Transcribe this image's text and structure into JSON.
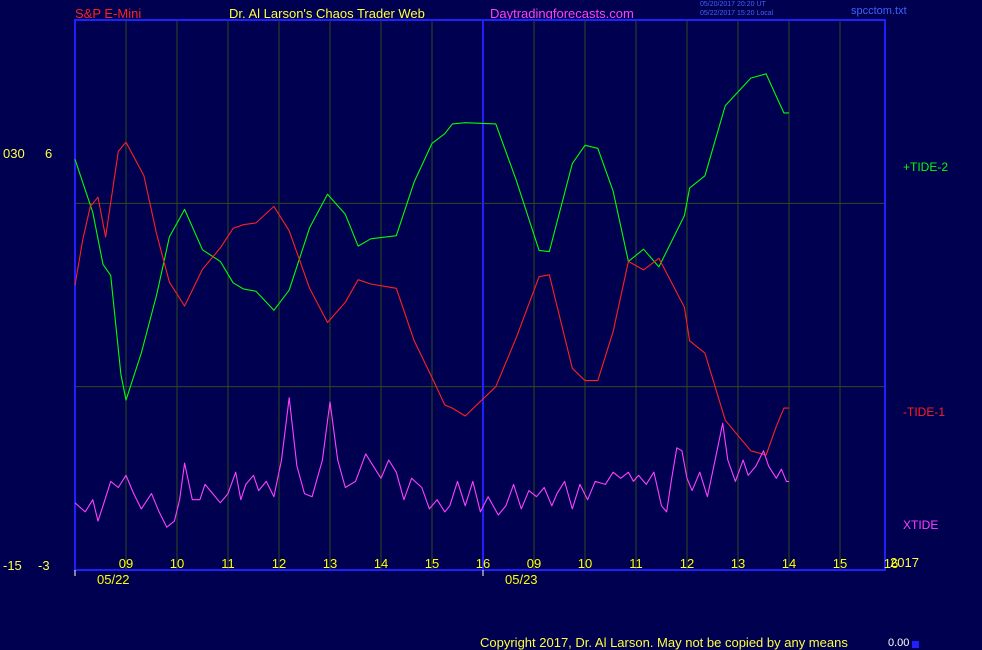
{
  "header": {
    "symbol": "S&P E-Mini",
    "title": "Dr. Al Larson's Chaos Trader Web",
    "site": "Daytradingforecasts.com",
    "ut_line": "05/20/2017 20:20 UT",
    "local_line": "05/22/2017 15:20 Local",
    "file": "spcctom.txt"
  },
  "footer": {
    "copyright": "Copyright 2017, Dr. Al Larson. May not be copied by any means",
    "value": "0.00"
  },
  "left_axis": {
    "top_a": "030",
    "top_b": "6",
    "bottom_a": "-15",
    "bottom_b": "-3"
  },
  "colors": {
    "background": "#000050",
    "frame": "#2020ff",
    "grid": "#2e4a1e",
    "tide2": "#00ff00",
    "tide1": "#ff2020",
    "xtide": "#ff40ff",
    "label": "#ffff00"
  },
  "chart_data": {
    "type": "line",
    "title": "",
    "x_tick_labels": [
      "09",
      "10",
      "11",
      "12",
      "13",
      "14",
      "15",
      "16",
      "09",
      "10",
      "11",
      "12",
      "13",
      "14",
      "15",
      "16"
    ],
    "date_labels": [
      "05/22",
      "05/23"
    ],
    "year_label": "2017",
    "y_range": [
      -3,
      6
    ],
    "series": [
      {
        "name": "+TIDE-2",
        "color": "#00ff00",
        "points": [
          [
            0,
            3.72
          ],
          [
            0.35,
            2.85
          ],
          [
            0.55,
            2.0
          ],
          [
            0.7,
            1.82
          ],
          [
            0.9,
            0.2
          ],
          [
            1.0,
            -0.22
          ],
          [
            1.3,
            0.55
          ],
          [
            1.6,
            1.5
          ],
          [
            1.85,
            2.45
          ],
          [
            2.15,
            2.9
          ],
          [
            2.5,
            2.24
          ],
          [
            2.85,
            2.05
          ],
          [
            3.1,
            1.7
          ],
          [
            3.3,
            1.6
          ],
          [
            3.55,
            1.56
          ],
          [
            3.9,
            1.25
          ],
          [
            4.2,
            1.58
          ],
          [
            4.6,
            2.6
          ],
          [
            4.95,
            3.15
          ],
          [
            5.3,
            2.82
          ],
          [
            5.55,
            2.3
          ],
          [
            5.8,
            2.42
          ],
          [
            6.3,
            2.47
          ],
          [
            6.65,
            3.35
          ],
          [
            7.0,
            3.98
          ],
          [
            7.25,
            4.14
          ],
          [
            7.4,
            4.3
          ],
          [
            7.65,
            4.32
          ],
          [
            8.25,
            4.3
          ],
          [
            8.65,
            3.38
          ],
          [
            9.1,
            2.23
          ],
          [
            9.3,
            2.21
          ],
          [
            9.75,
            3.65
          ],
          [
            10.0,
            3.95
          ],
          [
            10.25,
            3.9
          ],
          [
            10.55,
            3.2
          ],
          [
            10.85,
            2.05
          ],
          [
            11.15,
            2.25
          ],
          [
            11.45,
            1.96
          ],
          [
            11.95,
            2.8
          ],
          [
            12.05,
            3.25
          ],
          [
            12.35,
            3.45
          ],
          [
            12.75,
            4.6
          ],
          [
            13.25,
            5.05
          ],
          [
            13.55,
            5.12
          ],
          [
            13.75,
            4.75
          ],
          [
            13.9,
            4.48
          ],
          [
            14.0,
            4.48
          ]
        ]
      },
      {
        "name": "-TIDE-1",
        "color": "#ff2020",
        "points": [
          [
            0,
            1.66
          ],
          [
            0.15,
            2.4
          ],
          [
            0.3,
            2.95
          ],
          [
            0.45,
            3.1
          ],
          [
            0.6,
            2.45
          ],
          [
            0.85,
            3.85
          ],
          [
            1.0,
            4.0
          ],
          [
            1.35,
            3.45
          ],
          [
            1.6,
            2.5
          ],
          [
            1.85,
            1.71
          ],
          [
            2.15,
            1.32
          ],
          [
            2.5,
            1.92
          ],
          [
            2.85,
            2.27
          ],
          [
            3.1,
            2.59
          ],
          [
            3.3,
            2.65
          ],
          [
            3.55,
            2.68
          ],
          [
            3.9,
            2.95
          ],
          [
            4.2,
            2.55
          ],
          [
            4.6,
            1.61
          ],
          [
            4.95,
            1.05
          ],
          [
            5.3,
            1.38
          ],
          [
            5.55,
            1.75
          ],
          [
            5.8,
            1.68
          ],
          [
            6.3,
            1.61
          ],
          [
            6.65,
            0.75
          ],
          [
            7.0,
            0.15
          ],
          [
            7.25,
            -0.3
          ],
          [
            7.4,
            -0.35
          ],
          [
            7.65,
            -0.48
          ],
          [
            8.25,
            0.0
          ],
          [
            8.65,
            0.8
          ],
          [
            9.1,
            1.8
          ],
          [
            9.3,
            1.83
          ],
          [
            9.75,
            0.3
          ],
          [
            10.0,
            0.1
          ],
          [
            10.25,
            0.1
          ],
          [
            10.55,
            0.9
          ],
          [
            10.85,
            2.05
          ],
          [
            11.15,
            1.91
          ],
          [
            11.45,
            2.1
          ],
          [
            11.95,
            1.3
          ],
          [
            12.05,
            0.75
          ],
          [
            12.35,
            0.55
          ],
          [
            12.75,
            -0.55
          ],
          [
            13.25,
            -1.05
          ],
          [
            13.55,
            -1.12
          ],
          [
            13.75,
            -0.65
          ],
          [
            13.9,
            -0.35
          ],
          [
            14.0,
            -0.35
          ]
        ]
      },
      {
        "name": "XTIDE",
        "color": "#ff40ff",
        "points": [
          [
            0,
            -1.9
          ],
          [
            0.2,
            -2.05
          ],
          [
            0.35,
            -1.85
          ],
          [
            0.45,
            -2.2
          ],
          [
            0.55,
            -1.95
          ],
          [
            0.7,
            -1.55
          ],
          [
            0.85,
            -1.65
          ],
          [
            1.0,
            -1.45
          ],
          [
            1.15,
            -1.75
          ],
          [
            1.3,
            -2.0
          ],
          [
            1.5,
            -1.75
          ],
          [
            1.65,
            -2.05
          ],
          [
            1.8,
            -2.3
          ],
          [
            1.95,
            -2.2
          ],
          [
            2.05,
            -1.85
          ],
          [
            2.15,
            -1.25
          ],
          [
            2.3,
            -1.85
          ],
          [
            2.45,
            -1.85
          ],
          [
            2.55,
            -1.6
          ],
          [
            2.7,
            -1.75
          ],
          [
            2.85,
            -1.9
          ],
          [
            3.0,
            -1.75
          ],
          [
            3.15,
            -1.4
          ],
          [
            3.25,
            -1.85
          ],
          [
            3.35,
            -1.6
          ],
          [
            3.5,
            -1.45
          ],
          [
            3.6,
            -1.7
          ],
          [
            3.75,
            -1.55
          ],
          [
            3.9,
            -1.8
          ],
          [
            4.05,
            -1.2
          ],
          [
            4.2,
            -0.18
          ],
          [
            4.35,
            -1.3
          ],
          [
            4.5,
            -1.75
          ],
          [
            4.65,
            -1.8
          ],
          [
            4.85,
            -1.2
          ],
          [
            5.0,
            -0.25
          ],
          [
            5.15,
            -1.2
          ],
          [
            5.3,
            -1.65
          ],
          [
            5.5,
            -1.55
          ],
          [
            5.7,
            -1.1
          ],
          [
            5.85,
            -1.3
          ],
          [
            6.0,
            -1.5
          ],
          [
            6.15,
            -1.2
          ],
          [
            6.3,
            -1.4
          ],
          [
            6.45,
            -1.85
          ],
          [
            6.6,
            -1.5
          ],
          [
            6.8,
            -1.65
          ],
          [
            6.95,
            -2.0
          ],
          [
            7.1,
            -1.85
          ],
          [
            7.25,
            -2.05
          ],
          [
            7.35,
            -1.95
          ],
          [
            7.5,
            -1.55
          ],
          [
            7.65,
            -1.95
          ],
          [
            7.8,
            -1.55
          ],
          [
            7.95,
            -2.05
          ],
          [
            8.1,
            -1.8
          ],
          [
            8.3,
            -2.1
          ],
          [
            8.45,
            -1.95
          ],
          [
            8.6,
            -1.6
          ],
          [
            8.75,
            -2.0
          ],
          [
            8.9,
            -1.7
          ],
          [
            9.05,
            -1.8
          ],
          [
            9.2,
            -1.65
          ],
          [
            9.35,
            -1.95
          ],
          [
            9.45,
            -1.75
          ],
          [
            9.6,
            -1.55
          ],
          [
            9.75,
            -2.0
          ],
          [
            9.9,
            -1.6
          ],
          [
            10.05,
            -1.85
          ],
          [
            10.2,
            -1.55
          ],
          [
            10.4,
            -1.6
          ],
          [
            10.55,
            -1.4
          ],
          [
            10.7,
            -1.5
          ],
          [
            10.85,
            -1.4
          ],
          [
            10.95,
            -1.55
          ],
          [
            11.05,
            -1.45
          ],
          [
            11.2,
            -1.6
          ],
          [
            11.35,
            -1.4
          ],
          [
            11.5,
            -1.95
          ],
          [
            11.6,
            -2.05
          ],
          [
            11.7,
            -1.5
          ],
          [
            11.8,
            -1.0
          ],
          [
            11.9,
            -1.05
          ],
          [
            12.0,
            -1.5
          ],
          [
            12.1,
            -1.7
          ],
          [
            12.25,
            -1.4
          ],
          [
            12.4,
            -1.8
          ],
          [
            12.55,
            -1.2
          ],
          [
            12.7,
            -0.6
          ],
          [
            12.8,
            -1.2
          ],
          [
            12.95,
            -1.55
          ],
          [
            13.1,
            -1.2
          ],
          [
            13.2,
            -1.45
          ],
          [
            13.35,
            -1.3
          ],
          [
            13.5,
            -1.05
          ],
          [
            13.6,
            -1.3
          ],
          [
            13.75,
            -1.5
          ],
          [
            13.85,
            -1.35
          ],
          [
            13.95,
            -1.55
          ],
          [
            14.0,
            -1.55
          ]
        ]
      }
    ]
  },
  "labels": {
    "tide2": "+TIDE-2",
    "tide1": "-TIDE-1",
    "xtide": "XTIDE"
  }
}
